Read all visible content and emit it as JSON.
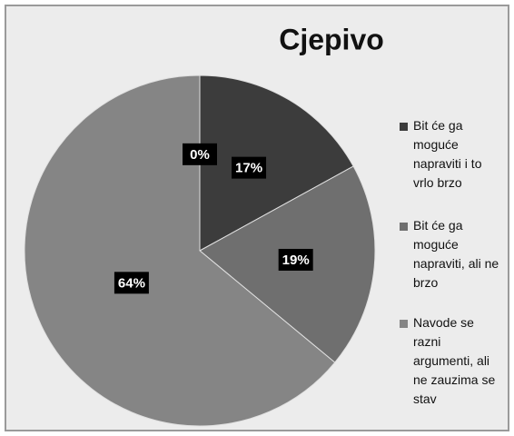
{
  "chart_data": {
    "type": "pie",
    "title": "Cjepivo",
    "categories": [
      "Bit će ga moguće napraviti i to vrlo brzo",
      "Bit će ga moguće napraviti, ali ne brzo",
      "Navode se razni argumenti, ali ne zauzima se stav",
      null
    ],
    "values": [
      17,
      19,
      64,
      0
    ],
    "value_labels": [
      "17%",
      "19%",
      "64%",
      "0%"
    ],
    "colors": [
      "#3c3c3c",
      "#6f6f6f",
      "#858585",
      "#9a9a9a"
    ],
    "legend": "right"
  }
}
